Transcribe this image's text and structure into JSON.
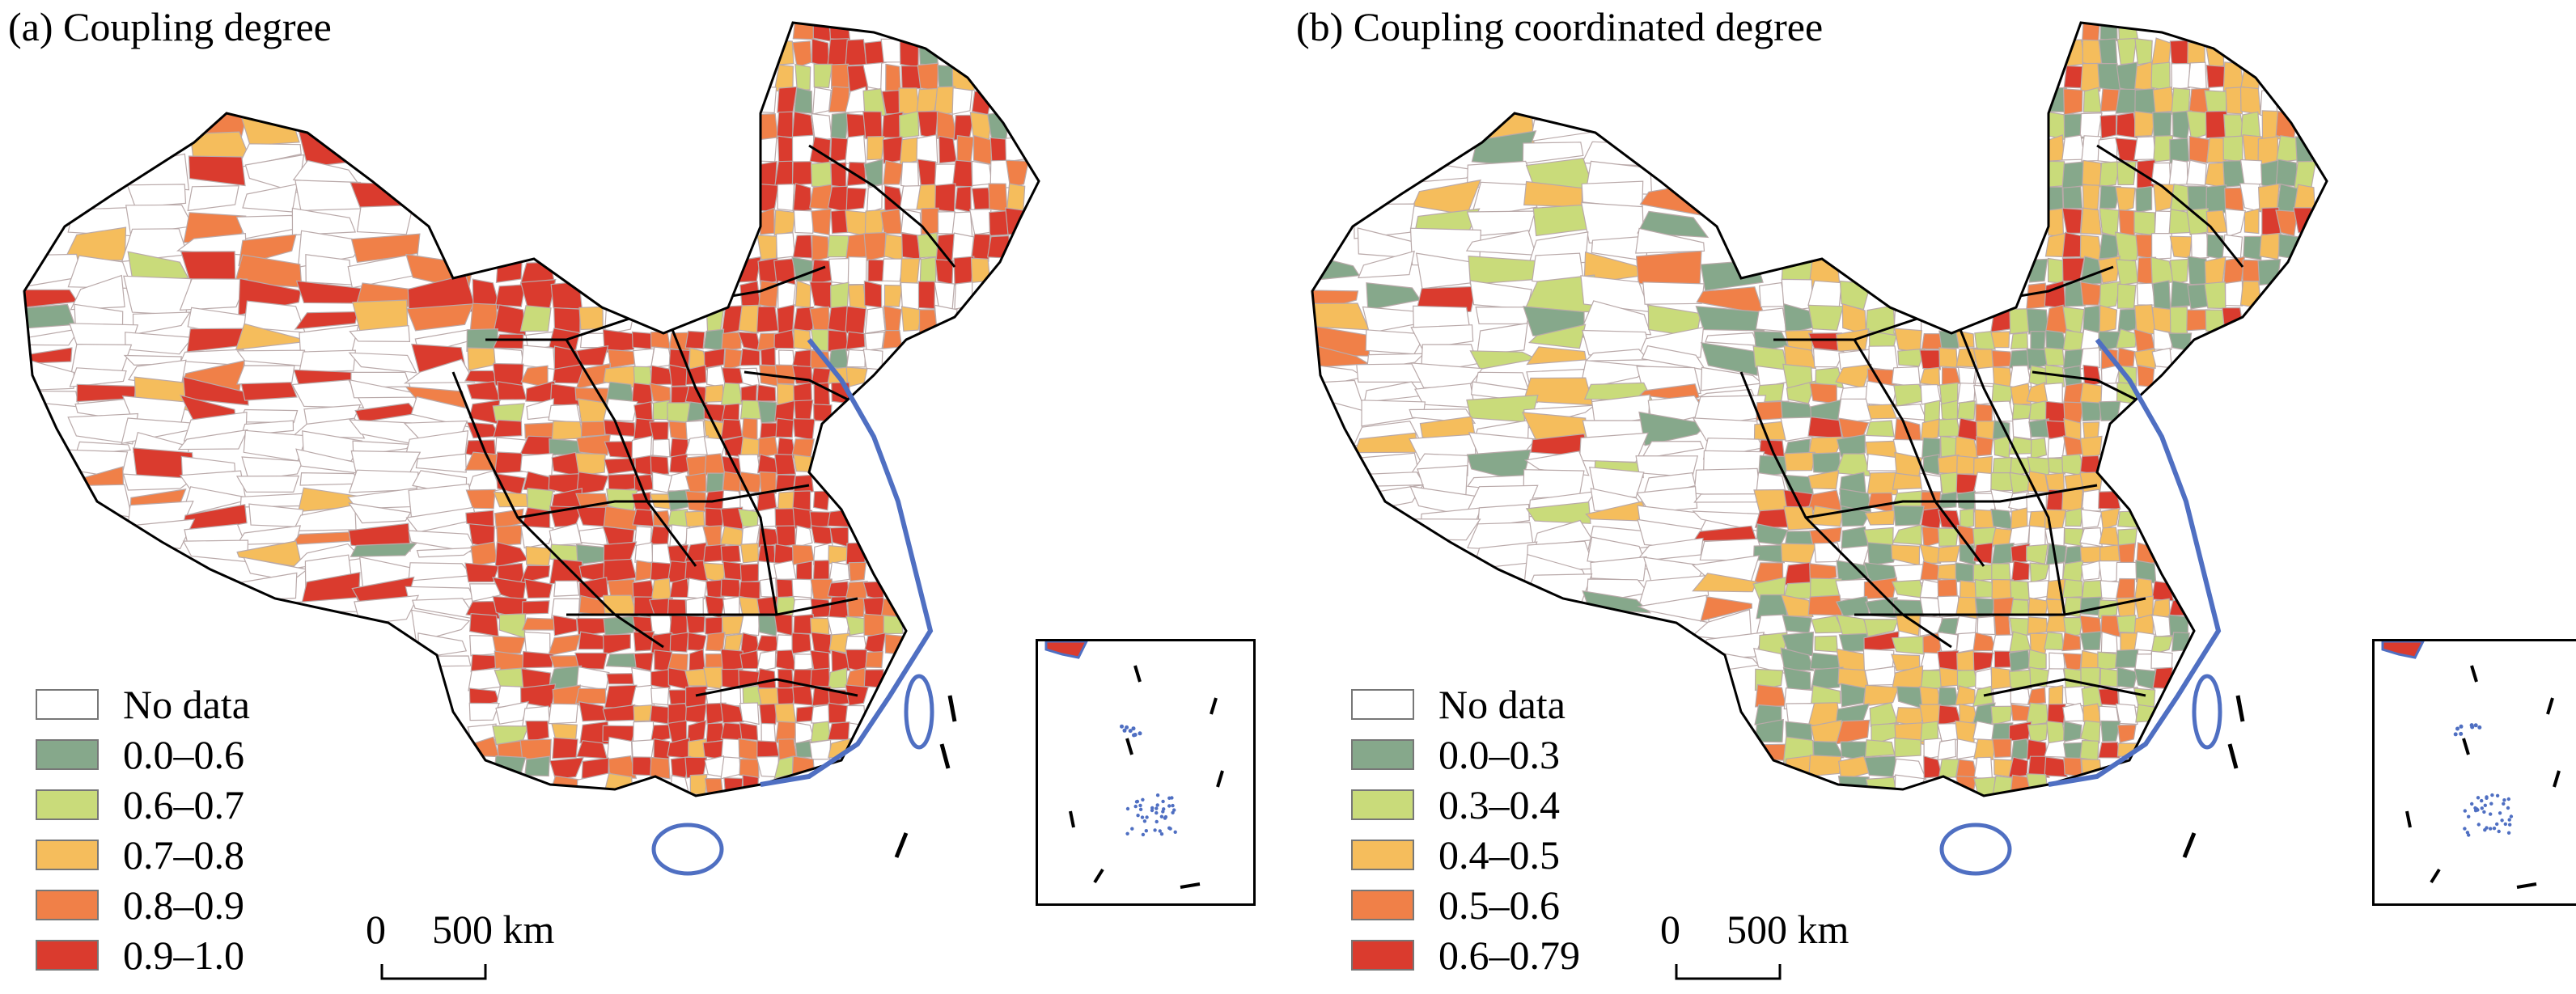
{
  "panels": [
    {
      "title": "(a) Coupling degree",
      "legend": [
        {
          "label": "No data",
          "color": "#ffffff"
        },
        {
          "label": "0.0–0.6",
          "color": "#86a88b"
        },
        {
          "label": "0.6–0.7",
          "color": "#c9db7a"
        },
        {
          "label": "0.7–0.8",
          "color": "#f5bd5c"
        },
        {
          "label": "0.8–0.9",
          "color": "#f08048"
        },
        {
          "label": "0.9–1.0",
          "color": "#da3b2e"
        }
      ],
      "scale_zero": "0",
      "scale_label": "500 km",
      "class_shares": [
        0.2,
        0.03,
        0.05,
        0.1,
        0.14,
        0.48
      ]
    },
    {
      "title": "(b) Coupling coordinated degree",
      "legend": [
        {
          "label": "No data",
          "color": "#ffffff"
        },
        {
          "label": "0.0–0.3",
          "color": "#86a88b"
        },
        {
          "label": "0.3–0.4",
          "color": "#c9db7a"
        },
        {
          "label": "0.4–0.5",
          "color": "#f5bd5c"
        },
        {
          "label": "0.5–0.6",
          "color": "#f08048"
        },
        {
          "label": "0.6–0.79",
          "color": "#da3b2e"
        }
      ],
      "scale_zero": "0",
      "scale_label": "500 km",
      "class_shares": [
        0.2,
        0.16,
        0.24,
        0.22,
        0.1,
        0.08
      ]
    }
  ],
  "colors": {
    "county_border": "#b9a9a9",
    "province_border": "#000000",
    "coastline": "#4f6fc2",
    "no_data_fill": "#ffffff"
  }
}
